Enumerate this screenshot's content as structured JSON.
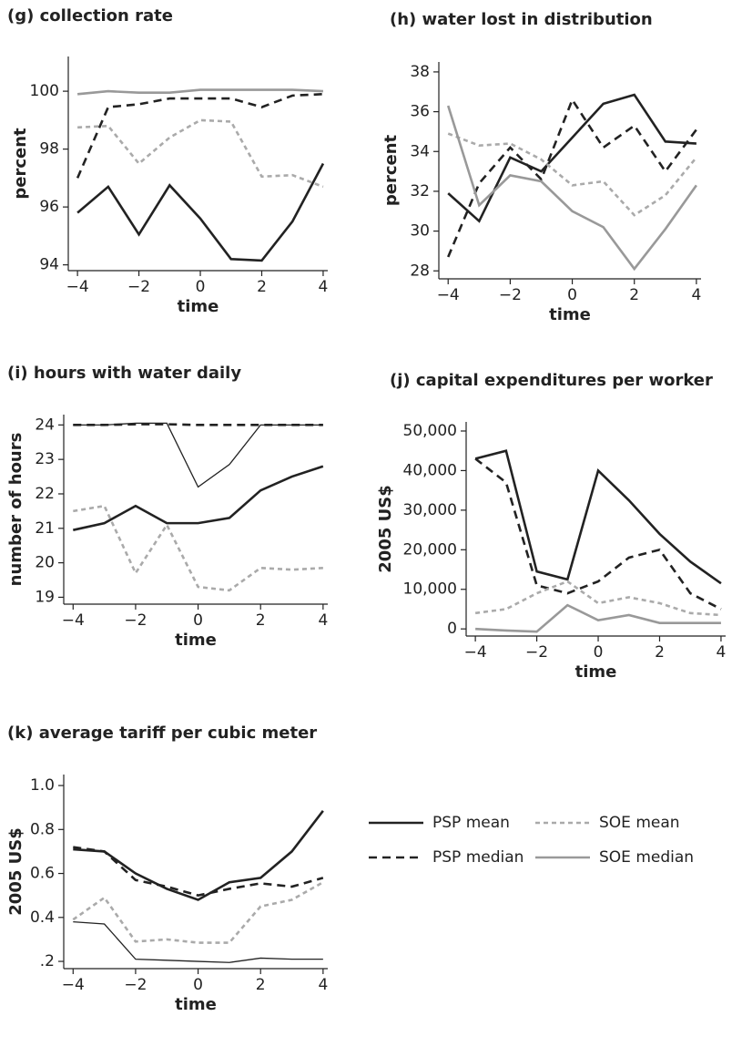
{
  "chart_data": [
    {
      "type": "line",
      "title": "(g) collection rate",
      "x_label": "time",
      "y_label": "percent",
      "x": [
        -4,
        -3,
        -2,
        -1,
        0,
        1,
        2,
        3,
        4
      ],
      "xlim": [
        -4.3,
        4.15
      ],
      "xticks": [
        {
          "value": -4,
          "label": "−4"
        },
        {
          "value": -2,
          "label": "−2"
        },
        0,
        2,
        4
      ],
      "ylim": [
        93.8,
        101.2
      ],
      "yticks": [
        94,
        96,
        98,
        100
      ],
      "series": [
        {
          "color": "#222222",
          "dash": "solid",
          "weight": "thick",
          "values": [
            95.8,
            96.7,
            95.05,
            96.75,
            95.6,
            94.2,
            94.15,
            95.5,
            97.5
          ]
        },
        {
          "color": "#222222",
          "dash": "dashed",
          "weight": "thick",
          "values": [
            97.0,
            99.45,
            99.55,
            99.75,
            99.75,
            99.75,
            99.45,
            99.85,
            99.9
          ]
        },
        {
          "color": "#aaaaaa",
          "dash": "dotted",
          "weight": "thick",
          "values": [
            98.75,
            98.8,
            97.5,
            98.4,
            99.0,
            98.95,
            97.05,
            97.1,
            96.7
          ]
        },
        {
          "color": "#999999",
          "dash": "solid",
          "weight": "thick",
          "values": [
            99.9,
            100.0,
            99.95,
            99.95,
            100.05,
            100.05,
            100.05,
            100.05,
            100.0
          ]
        }
      ]
    },
    {
      "type": "line",
      "title": "(h) water lost in distribution",
      "x_label": "time",
      "y_label": "percent",
      "x": [
        -4,
        -3,
        -2,
        -1,
        0,
        1,
        2,
        3,
        4
      ],
      "xlim": [
        -4.3,
        4.15
      ],
      "xticks": [
        {
          "value": -4,
          "label": "−4"
        },
        {
          "value": -2,
          "label": "−2"
        },
        0,
        2,
        4
      ],
      "ylim": [
        27.6,
        38.5
      ],
      "yticks": [
        28,
        30,
        32,
        34,
        36,
        38
      ],
      "series": [
        {
          "color": "#222222",
          "dash": "solid",
          "weight": "thick",
          "values": [
            31.9,
            30.5,
            33.7,
            33.0,
            34.7,
            36.4,
            36.85,
            34.5,
            34.4
          ]
        },
        {
          "color": "#222222",
          "dash": "dashed",
          "weight": "thick",
          "values": [
            28.7,
            32.4,
            34.2,
            32.6,
            36.6,
            34.2,
            35.3,
            33.0,
            35.1
          ]
        },
        {
          "color": "#aaaaaa",
          "dash": "dotted",
          "weight": "thick",
          "values": [
            34.9,
            34.3,
            34.4,
            33.6,
            32.3,
            32.5,
            30.8,
            31.8,
            33.7
          ]
        },
        {
          "color": "#999999",
          "dash": "solid",
          "weight": "thick",
          "values": [
            36.3,
            31.3,
            32.8,
            32.5,
            31.0,
            30.2,
            28.1,
            30.1,
            32.3
          ]
        }
      ]
    },
    {
      "type": "line",
      "title": "(i) hours with water daily",
      "x_label": "time",
      "y_label": "number of hours",
      "x": [
        -4,
        -3,
        -2,
        -1,
        0,
        1,
        2,
        3,
        4
      ],
      "xlim": [
        -4.3,
        4.15
      ],
      "xticks": [
        {
          "value": -4,
          "label": "−4"
        },
        {
          "value": -2,
          "label": "−2"
        },
        0,
        2,
        4
      ],
      "ylim": [
        18.8,
        24.3
      ],
      "yticks": [
        19,
        20,
        21,
        22,
        23,
        24
      ],
      "series": [
        {
          "color": "#222222",
          "dash": "solid",
          "weight": "thick",
          "values": [
            20.95,
            21.15,
            21.65,
            21.15,
            21.15,
            21.3,
            22.1,
            22.5,
            22.8
          ]
        },
        {
          "color": "#222222",
          "dash": "dashed",
          "weight": "thick",
          "values": [
            24,
            24,
            24.02,
            24.02,
            24,
            24,
            24,
            24,
            24
          ]
        },
        {
          "color": "#aaaaaa",
          "dash": "dotted",
          "weight": "thick",
          "values": [
            21.5,
            21.65,
            19.7,
            21.1,
            19.3,
            19.2,
            19.85,
            19.8,
            19.85
          ]
        },
        {
          "color": "#222222",
          "dash": "solid",
          "weight": "thin",
          "values": [
            24,
            24,
            24.05,
            24.05,
            22.2,
            22.85,
            24,
            24,
            24
          ]
        }
      ]
    },
    {
      "type": "line",
      "title": "(j) capital expenditures per worker",
      "x_label": "time",
      "y_label": "2005 US$",
      "x": [
        -4,
        -3,
        -2,
        -1,
        0,
        1,
        2,
        3,
        4
      ],
      "xlim": [
        -4.3,
        4.15
      ],
      "xticks": [
        {
          "value": -4,
          "label": "−4"
        },
        {
          "value": -2,
          "label": "−2"
        },
        0,
        2,
        4
      ],
      "ylim": [
        -1800,
        52300
      ],
      "yticks": [
        0,
        {
          "value": 10000,
          "label": "10,000"
        },
        {
          "value": 20000,
          "label": "20,000"
        },
        {
          "value": 30000,
          "label": "30,000"
        },
        {
          "value": 40000,
          "label": "40,000"
        },
        {
          "value": 50000,
          "label": "50,000"
        }
      ],
      "series": [
        {
          "color": "#222222",
          "dash": "solid",
          "weight": "thick",
          "values": [
            43000,
            45000,
            14500,
            12500,
            40000,
            32500,
            24000,
            17000,
            11500
          ]
        },
        {
          "color": "#222222",
          "dash": "dashed",
          "weight": "thick",
          "values": [
            43000,
            37000,
            11000,
            9000,
            12000,
            18000,
            20000,
            9000,
            5000
          ]
        },
        {
          "color": "#aaaaaa",
          "dash": "dotted",
          "weight": "thick",
          "values": [
            4000,
            5000,
            9000,
            12000,
            6500,
            8000,
            6500,
            4000,
            3500
          ]
        },
        {
          "color": "#999999",
          "dash": "solid",
          "weight": "thick",
          "values": [
            0,
            -400,
            -700,
            6000,
            2200,
            3500,
            1500,
            1500,
            1500
          ]
        }
      ]
    },
    {
      "type": "line",
      "title": "(k) average tariff per cubic meter",
      "x_label": "time",
      "y_label": "2005 US$",
      "x": [
        -4,
        -3,
        -2,
        -1,
        0,
        1,
        2,
        3,
        4
      ],
      "xlim": [
        -4.3,
        4.15
      ],
      "xticks": [
        {
          "value": -4,
          "label": "−4"
        },
        {
          "value": -2,
          "label": "−2"
        },
        0,
        2,
        4
      ],
      "ylim": [
        0.167,
        1.05
      ],
      "yticks": [
        {
          "value": 0.2,
          "label": ".2"
        },
        0.4,
        0.6,
        0.8,
        {
          "value": 1.0,
          "label": "1.0"
        }
      ],
      "series": [
        {
          "color": "#222222",
          "dash": "solid",
          "weight": "thick",
          "values": [
            0.71,
            0.7,
            0.6,
            0.53,
            0.48,
            0.56,
            0.58,
            0.7,
            0.885
          ]
        },
        {
          "color": "#222222",
          "dash": "dashed",
          "weight": "thick",
          "values": [
            0.72,
            0.7,
            0.57,
            0.54,
            0.5,
            0.53,
            0.555,
            0.54,
            0.58
          ]
        },
        {
          "color": "#aaaaaa",
          "dash": "dotted",
          "weight": "thick",
          "values": [
            0.39,
            0.49,
            0.29,
            0.3,
            0.285,
            0.285,
            0.45,
            0.48,
            0.56
          ]
        },
        {
          "color": "#222222",
          "dash": "solid",
          "weight": "thin",
          "values": [
            0.38,
            0.37,
            0.21,
            0.205,
            0.2,
            0.195,
            0.215,
            0.21,
            0.21
          ]
        }
      ]
    }
  ],
  "legend": [
    {
      "name": "PSP mean",
      "color": "#222222",
      "dash": "solid"
    },
    {
      "name": "SOE mean",
      "color": "#aaaaaa",
      "dash": "dotted"
    },
    {
      "name": "PSP median",
      "color": "#222222",
      "dash": "dashed"
    },
    {
      "name": "SOE median",
      "color": "#999999",
      "dash": "solid"
    }
  ]
}
